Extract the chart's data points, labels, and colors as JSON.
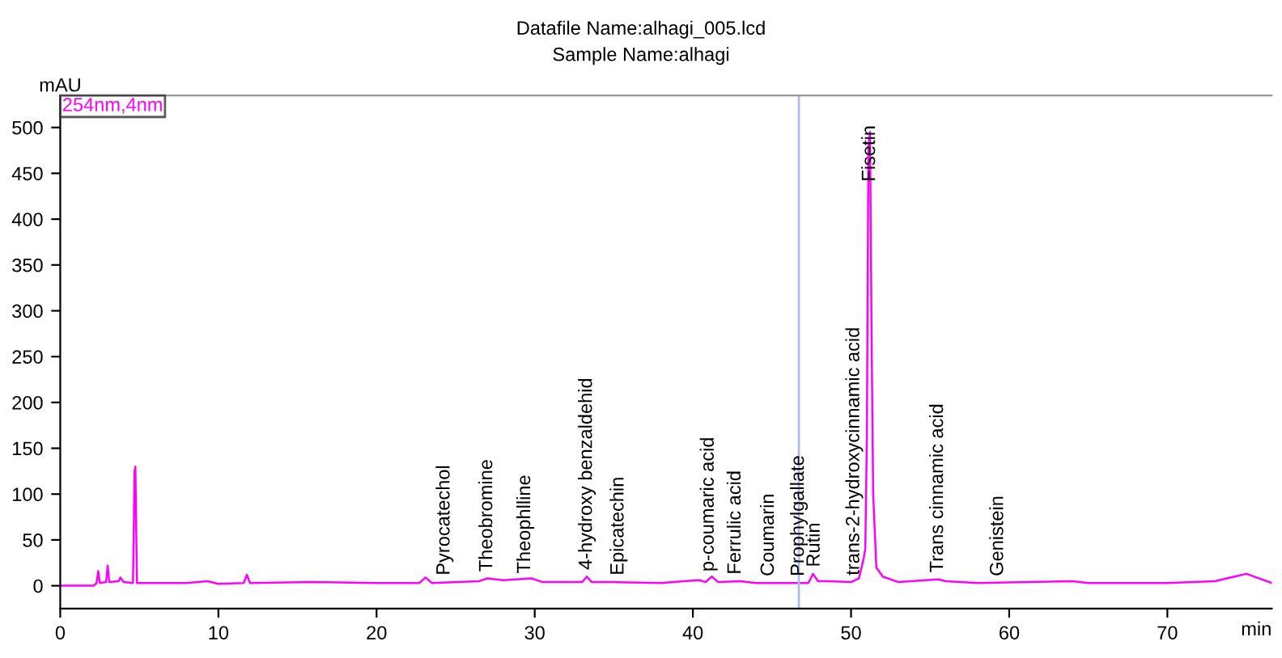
{
  "chart_data": {
    "type": "line",
    "title": "Datafile Name:alhagi_005.lcd",
    "subtitle": "Sample Name:alhagi",
    "ylabel": "mAU",
    "xlabel": "min",
    "legend": "top left",
    "grid": false,
    "marker": "none",
    "line_style": "solid",
    "xlim": [
      0,
      76.6
    ],
    "xticks": [
      0,
      10,
      20,
      30,
      40,
      50,
      60,
      70
    ],
    "ylim": [
      -25,
      535
    ],
    "yticks": [
      0,
      50,
      100,
      150,
      200,
      250,
      300,
      350,
      400,
      450,
      500
    ],
    "series": [
      {
        "name": "254nm,4nm",
        "color": "#ff00ff",
        "x": [
          0,
          2.1,
          2.3,
          2.4,
          2.5,
          2.9,
          3.0,
          3.1,
          3.7,
          3.8,
          4.0,
          4.6,
          4.7,
          4.75,
          4.85,
          5.5,
          8,
          9.3,
          10,
          11.6,
          11.8,
          12,
          16,
          20,
          22.7,
          23.1,
          23.5,
          26.5,
          27,
          28,
          29.8,
          30.5,
          33,
          33.3,
          33.6,
          35,
          38,
          39.4,
          40.4,
          40.8,
          41.2,
          41.6,
          43,
          44,
          45,
          47.3,
          47.6,
          47.9,
          48.5,
          50,
          50.5,
          50.8,
          50.9,
          51.0,
          51.1,
          51.2,
          51.3,
          51.4,
          51.6,
          52,
          53,
          55.5,
          56,
          58,
          64,
          65,
          70,
          73,
          75,
          76.6
        ],
        "values": [
          0,
          0,
          3,
          16,
          3,
          4,
          22,
          4,
          5,
          9,
          4,
          3,
          125,
          130,
          3,
          3,
          3,
          5,
          2,
          3,
          12,
          3,
          4,
          3,
          3,
          9,
          3,
          5,
          8,
          6,
          8,
          4,
          4,
          10,
          4,
          4,
          3,
          5,
          6,
          4,
          10,
          4,
          5,
          3,
          3,
          3,
          13,
          5,
          5,
          4,
          8,
          30,
          40,
          160,
          480,
          495,
          270,
          100,
          20,
          10,
          4,
          7,
          5,
          3,
          5,
          3,
          3,
          5,
          13,
          3
        ]
      }
    ],
    "ref_lines": [
      {
        "axis": "x",
        "value": 46.7,
        "color": "#b0b8f0"
      }
    ],
    "annotations": [
      {
        "text": "Pyrocatechol",
        "x": 24.3,
        "y": 4
      },
      {
        "text": "Theobromine",
        "x": 27.0,
        "y": 8
      },
      {
        "text": "Theophlline",
        "x": 29.4,
        "y": 6
      },
      {
        "text": "4-hydroxy benzaldehid",
        "x": 33.3,
        "y": 10
      },
      {
        "text": "Epicatechin",
        "x": 35.3,
        "y": 4
      },
      {
        "text": "p-coumaric acid",
        "x": 41.0,
        "y": 8
      },
      {
        "text": "Ferrulic acid",
        "x": 42.7,
        "y": 5
      },
      {
        "text": "Coumarin",
        "x": 44.8,
        "y": 3
      },
      {
        "text": "Prophylgallate",
        "x": 46.7,
        "y": 3
      },
      {
        "text": "Rutin",
        "x": 47.7,
        "y": 13
      },
      {
        "text": "trans-2-hydroxycinnamic acid",
        "x": 50.2,
        "y": 4
      },
      {
        "text": "Fisetin",
        "x": 51.2,
        "y": 495
      },
      {
        "text": "Trans cinnamic acid",
        "x": 55.5,
        "y": 7
      },
      {
        "text": "Genistein",
        "x": 59.3,
        "y": 3
      }
    ]
  }
}
